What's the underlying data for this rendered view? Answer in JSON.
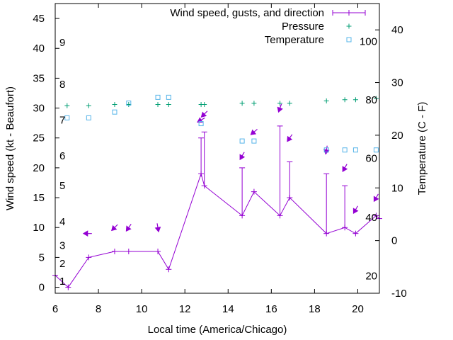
{
  "chart_data": {
    "type": "line",
    "xlabel": "Local time (America/Chicago)",
    "ylabel": "Wind speed (kt - Beaufort)",
    "y2label": "Temperature (C - F)",
    "xlim": [
      6,
      21
    ],
    "ylim": [
      -1,
      47.5
    ],
    "y2lim": [
      -10,
      45
    ],
    "x_ticks": [
      6,
      8,
      10,
      12,
      14,
      16,
      18,
      20
    ],
    "y_ticks": [
      0,
      5,
      10,
      15,
      20,
      25,
      30,
      35,
      40,
      45
    ],
    "y2_ticks": [
      -10,
      0,
      10,
      20,
      30,
      40
    ],
    "beaufort_labels": [
      {
        "label": "1",
        "wind_kt": 1
      },
      {
        "label": "2",
        "wind_kt": 4
      },
      {
        "label": "3",
        "wind_kt": 7
      },
      {
        "label": "4",
        "wind_kt": 11
      },
      {
        "label": "5",
        "wind_kt": 17
      },
      {
        "label": "6",
        "wind_kt": 22
      },
      {
        "label": "7",
        "wind_kt": 28
      },
      {
        "label": "8",
        "wind_kt": 34
      },
      {
        "label": "9",
        "wind_kt": 41
      }
    ],
    "fahrenheit_labels": [
      {
        "label": "20",
        "temp_c": -6.7
      },
      {
        "label": "40",
        "temp_c": 4.4
      },
      {
        "label": "60",
        "temp_c": 15.6
      },
      {
        "label": "80",
        "temp_c": 26.7
      },
      {
        "label": "100",
        "temp_c": 37.8
      }
    ],
    "legend_position": "top-right",
    "series": [
      {
        "name": "Wind speed, gusts, and direction",
        "color": "#9400d3",
        "points": [
          {
            "x": 6.0,
            "y": 2,
            "gust": null
          },
          {
            "x": 6.6,
            "y": 0,
            "gust": null
          },
          {
            "x": 7.55,
            "y": 5,
            "gust": null
          },
          {
            "x": 8.75,
            "y": 6,
            "gust": null
          },
          {
            "x": 9.4,
            "y": 6,
            "gust": null
          },
          {
            "x": 10.75,
            "y": 6,
            "gust": null
          },
          {
            "x": 11.25,
            "y": 3,
            "gust": null
          },
          {
            "x": 12.75,
            "y": 19,
            "gust": 25
          },
          {
            "x": 12.9,
            "y": 17,
            "gust": 26
          },
          {
            "x": 14.65,
            "y": 12,
            "gust": 20
          },
          {
            "x": 15.2,
            "y": 16,
            "gust": null
          },
          {
            "x": 16.4,
            "y": 12,
            "gust": 27
          },
          {
            "x": 16.85,
            "y": 15,
            "gust": 21
          },
          {
            "x": 18.55,
            "y": 9,
            "gust": 19
          },
          {
            "x": 19.4,
            "y": 10,
            "gust": 17
          },
          {
            "x": 19.9,
            "y": 9,
            "gust": null
          },
          {
            "x": 20.85,
            "y": 12,
            "gust": null
          },
          {
            "x": 21.0,
            "y": 11.5,
            "gust": null
          }
        ],
        "direction_arrows": [
          {
            "x": 7.5,
            "y": 9,
            "angle": 180
          },
          {
            "x": 8.75,
            "y": 10,
            "angle": 225
          },
          {
            "x": 9.4,
            "y": 10,
            "angle": 235
          },
          {
            "x": 10.75,
            "y": 10,
            "angle": 280
          },
          {
            "x": 12.75,
            "y": 28,
            "angle": 210
          },
          {
            "x": 12.9,
            "y": 29,
            "angle": 225
          },
          {
            "x": 14.65,
            "y": 22,
            "angle": 240
          },
          {
            "x": 15.2,
            "y": 26,
            "angle": 220
          },
          {
            "x": 16.4,
            "y": 30,
            "angle": 250
          },
          {
            "x": 16.85,
            "y": 25,
            "angle": 235
          },
          {
            "x": 18.55,
            "y": 23,
            "angle": 260
          },
          {
            "x": 19.4,
            "y": 20,
            "angle": 240
          },
          {
            "x": 19.9,
            "y": 13,
            "angle": 240
          },
          {
            "x": 20.85,
            "y": 15,
            "angle": 240
          }
        ]
      },
      {
        "name": "Pressure",
        "color": "#009e73",
        "marker": "+",
        "points": [
          {
            "x": 6.55,
            "y": 30.4
          },
          {
            "x": 7.55,
            "y": 30.4
          },
          {
            "x": 8.75,
            "y": 30.6
          },
          {
            "x": 9.4,
            "y": 30.6
          },
          {
            "x": 10.75,
            "y": 30.6
          },
          {
            "x": 11.25,
            "y": 30.6
          },
          {
            "x": 12.75,
            "y": 30.6
          },
          {
            "x": 12.9,
            "y": 30.6
          },
          {
            "x": 14.65,
            "y": 30.8
          },
          {
            "x": 15.2,
            "y": 30.8
          },
          {
            "x": 16.4,
            "y": 30.8
          },
          {
            "x": 16.85,
            "y": 30.8
          },
          {
            "x": 18.55,
            "y": 31.2
          },
          {
            "x": 19.4,
            "y": 31.4
          },
          {
            "x": 19.9,
            "y": 31.4
          },
          {
            "x": 20.85,
            "y": 31.6
          }
        ]
      },
      {
        "name": "Temperature",
        "color": "#56b4e9",
        "marker": "square",
        "points": [
          {
            "x": 6.55,
            "y": 23.3
          },
          {
            "x": 7.55,
            "y": 23.3
          },
          {
            "x": 8.75,
            "y": 24.4
          },
          {
            "x": 9.4,
            "y": 26.1
          },
          {
            "x": 10.75,
            "y": 27.2
          },
          {
            "x": 11.25,
            "y": 27.2
          },
          {
            "x": 12.75,
            "y": 22.2
          },
          {
            "x": 14.65,
            "y": 18.9
          },
          {
            "x": 15.2,
            "y": 18.9
          },
          {
            "x": 18.55,
            "y": 17.2
          },
          {
            "x": 19.4,
            "y": 17.2
          },
          {
            "x": 19.9,
            "y": 17.2
          },
          {
            "x": 20.85,
            "y": 17.2
          }
        ]
      }
    ]
  }
}
